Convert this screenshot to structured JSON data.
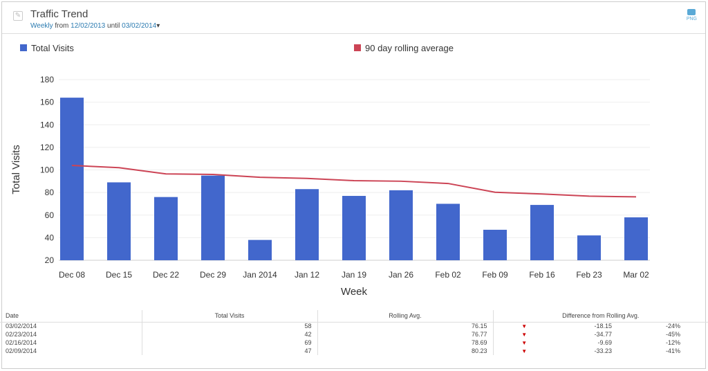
{
  "header": {
    "title": "Traffic Trend",
    "interval": "Weekly",
    "from_label": "from",
    "from_date": "12/02/2013",
    "until_label": "until",
    "until_date": "03/02/2014",
    "export_label": "PNG"
  },
  "chart_data": {
    "type": "bar",
    "xlabel": "Week",
    "ylabel": "Total Visits",
    "ylim": [
      20,
      180
    ],
    "yticks": [
      20,
      40,
      60,
      80,
      100,
      120,
      140,
      160,
      180
    ],
    "grid": true,
    "legend_placement": "top",
    "categories": [
      "Dec 08",
      "Dec 15",
      "Dec 22",
      "Dec 29",
      "Jan 2014",
      "Jan 12",
      "Jan 19",
      "Jan 26",
      "Feb 02",
      "Feb 09",
      "Feb 16",
      "Feb 23",
      "Mar 02"
    ],
    "series": [
      {
        "name": "Total Visits",
        "type": "bar",
        "color": "#4267cc",
        "values": [
          164,
          89,
          76,
          95,
          38,
          83,
          77,
          82,
          70,
          47,
          69,
          42,
          58
        ]
      },
      {
        "name": "90 day rolling average",
        "type": "line",
        "color": "#cc4455",
        "values": [
          104,
          102,
          96.5,
          96,
          93.5,
          92.5,
          90.5,
          90,
          88,
          80.23,
          78.69,
          76.77,
          76.15
        ]
      }
    ]
  },
  "table": {
    "headers": [
      "Date",
      "Total Visits",
      "Rolling Avg.",
      "Difference from Rolling Avg."
    ],
    "rows": [
      [
        "03/02/2014",
        "58",
        "76.15",
        "-18.15",
        "-24%"
      ],
      [
        "02/23/2014",
        "42",
        "76.77",
        "-34.77",
        "-45%"
      ],
      [
        "02/16/2014",
        "69",
        "78.69",
        "-9.69",
        "-12%"
      ],
      [
        "02/09/2014",
        "47",
        "80.23",
        "-33.23",
        "-41%"
      ]
    ]
  }
}
